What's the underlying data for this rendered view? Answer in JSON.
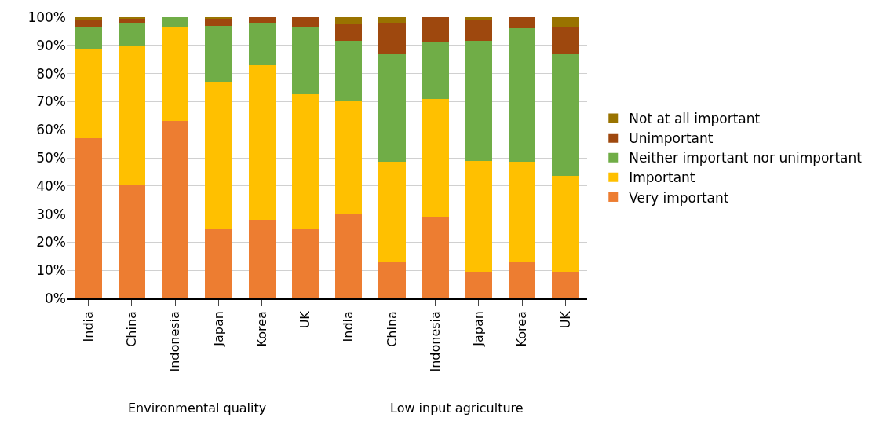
{
  "chart_data": {
    "type": "bar",
    "stacked": true,
    "categories": [
      "India",
      "China",
      "Indonesia",
      "Japan",
      "Korea",
      "UK",
      "India",
      "China",
      "Indonesia",
      "Japan",
      "Korea",
      "UK"
    ],
    "annotations": [
      "Environmental quality",
      "Low input agriculture"
    ],
    "series": [
      {
        "name": "Very important",
        "color": "#ed7d31",
        "values": [
          57,
          40.5,
          63,
          24.5,
          28,
          24.5,
          30,
          13,
          29,
          9.5,
          13,
          9.5
        ]
      },
      {
        "name": "Important",
        "color": "#ffc000",
        "values": [
          31.5,
          49.5,
          33.5,
          52.5,
          55,
          48,
          40.5,
          35.5,
          42,
          39.5,
          35.5,
          34
        ]
      },
      {
        "name": "Neither important nor unimportant",
        "color": "#70ad47",
        "values": [
          8,
          8,
          3.5,
          20,
          15,
          24,
          21,
          38.5,
          20,
          42.5,
          47.5,
          43.5
        ]
      },
      {
        "name": "Unimportant",
        "color": "#9e480e",
        "values": [
          2.5,
          1.5,
          0,
          2.5,
          2,
          3.5,
          6,
          11,
          9,
          7.5,
          4,
          9.5
        ]
      },
      {
        "name": "Not at all important",
        "color": "#997300",
        "values": [
          1,
          0.5,
          0,
          0.5,
          0,
          0,
          2.5,
          2,
          0,
          1,
          0,
          3.5
        ]
      }
    ],
    "ylim": [
      0,
      100
    ],
    "yticks": [
      {
        "value": 0,
        "label": "0%"
      },
      {
        "value": 10,
        "label": "10%"
      },
      {
        "value": 20,
        "label": "20%"
      },
      {
        "value": 30,
        "label": "30%"
      },
      {
        "value": 40,
        "label": "40%"
      },
      {
        "value": 50,
        "label": "50%"
      },
      {
        "value": 60,
        "label": "60%"
      },
      {
        "value": 70,
        "label": "70%"
      },
      {
        "value": 80,
        "label": "80%"
      },
      {
        "value": 90,
        "label": "90%"
      },
      {
        "value": 100,
        "label": "100%"
      }
    ],
    "grid": "y",
    "legend": "right"
  }
}
